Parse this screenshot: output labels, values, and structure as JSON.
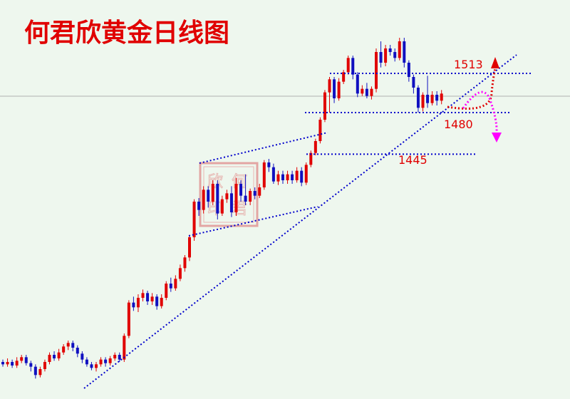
{
  "chart_data": {
    "type": "candlestick",
    "title": "何君欣黄金日线图",
    "colors": {
      "up": "#e00000",
      "down": "#1010c0",
      "trend": "#0000cc",
      "title": "#e00000",
      "arrow_up": "#e00000",
      "arrow_down": "#ff00ff",
      "background": "#eef7ee"
    },
    "levels": [
      {
        "label": "1513",
        "price": 1513,
        "color": "#e00000"
      },
      {
        "label": "1480",
        "price": 1480,
        "color": "#e00000"
      },
      {
        "label": "1445",
        "price": 1445,
        "color": "#e00000"
      }
    ],
    "stamp_text": [
      "何",
      "君",
      "欣",
      "印"
    ],
    "candles": [
      [
        1270,
        1268,
        1272,
        1266
      ],
      [
        1268,
        1270,
        1273,
        1266
      ],
      [
        1270,
        1267,
        1272,
        1265
      ],
      [
        1267,
        1271,
        1274,
        1265
      ],
      [
        1271,
        1274,
        1276,
        1269
      ],
      [
        1274,
        1269,
        1276,
        1267
      ],
      [
        1269,
        1266,
        1271,
        1262
      ],
      [
        1266,
        1259,
        1268,
        1256
      ],
      [
        1259,
        1264,
        1266,
        1257
      ],
      [
        1264,
        1270,
        1272,
        1262
      ],
      [
        1270,
        1276,
        1278,
        1268
      ],
      [
        1276,
        1273,
        1279,
        1271
      ],
      [
        1273,
        1278,
        1281,
        1271
      ],
      [
        1278,
        1283,
        1285,
        1276
      ],
      [
        1283,
        1286,
        1288,
        1280
      ],
      [
        1286,
        1282,
        1288,
        1279
      ],
      [
        1282,
        1277,
        1284,
        1274
      ],
      [
        1277,
        1272,
        1279,
        1269
      ],
      [
        1272,
        1268,
        1274,
        1266
      ],
      [
        1268,
        1265,
        1270,
        1263
      ],
      [
        1265,
        1268,
        1270,
        1262
      ],
      [
        1268,
        1272,
        1274,
        1266
      ],
      [
        1272,
        1269,
        1274,
        1266
      ],
      [
        1269,
        1273,
        1275,
        1267
      ],
      [
        1273,
        1276,
        1278,
        1271
      ],
      [
        1276,
        1272,
        1278,
        1270
      ],
      [
        1272,
        1292,
        1294,
        1270
      ],
      [
        1292,
        1320,
        1322,
        1290
      ],
      [
        1320,
        1316,
        1325,
        1313
      ],
      [
        1316,
        1324,
        1327,
        1312
      ],
      [
        1324,
        1328,
        1331,
        1321
      ],
      [
        1328,
        1321,
        1330,
        1318
      ],
      [
        1321,
        1325,
        1328,
        1318
      ],
      [
        1325,
        1317,
        1327,
        1314
      ],
      [
        1317,
        1324,
        1327,
        1315
      ],
      [
        1324,
        1336,
        1338,
        1322
      ],
      [
        1336,
        1332,
        1341,
        1329
      ],
      [
        1332,
        1340,
        1343,
        1330
      ],
      [
        1340,
        1349,
        1352,
        1338
      ],
      [
        1349,
        1358,
        1360,
        1346
      ],
      [
        1358,
        1375,
        1377,
        1355
      ],
      [
        1375,
        1405,
        1407,
        1372
      ],
      [
        1405,
        1398,
        1408,
        1393
      ],
      [
        1398,
        1415,
        1418,
        1395
      ],
      [
        1415,
        1405,
        1418,
        1400
      ],
      [
        1405,
        1420,
        1423,
        1402
      ],
      [
        1420,
        1395,
        1423,
        1390
      ],
      [
        1395,
        1407,
        1410,
        1393
      ],
      [
        1407,
        1412,
        1415,
        1404
      ],
      [
        1412,
        1396,
        1418,
        1392
      ],
      [
        1396,
        1420,
        1425,
        1393
      ],
      [
        1420,
        1410,
        1423,
        1405
      ],
      [
        1410,
        1405,
        1428,
        1402
      ],
      [
        1405,
        1414,
        1416,
        1402
      ],
      [
        1414,
        1410,
        1417,
        1407
      ],
      [
        1410,
        1417,
        1420,
        1408
      ],
      [
        1417,
        1438,
        1440,
        1415
      ],
      [
        1438,
        1434,
        1441,
        1430
      ],
      [
        1434,
        1422,
        1437,
        1420
      ],
      [
        1422,
        1428,
        1431,
        1419
      ],
      [
        1428,
        1423,
        1431,
        1420
      ],
      [
        1423,
        1428,
        1431,
        1420
      ],
      [
        1428,
        1423,
        1431,
        1420
      ],
      [
        1423,
        1431,
        1434,
        1421
      ],
      [
        1431,
        1421,
        1434,
        1418
      ],
      [
        1421,
        1436,
        1438,
        1419
      ],
      [
        1436,
        1446,
        1448,
        1434
      ],
      [
        1446,
        1456,
        1458,
        1444
      ],
      [
        1456,
        1474,
        1476,
        1454
      ],
      [
        1474,
        1497,
        1499,
        1472
      ],
      [
        1497,
        1508,
        1510,
        1480
      ],
      [
        1508,
        1492,
        1510,
        1488
      ],
      [
        1492,
        1506,
        1509,
        1490
      ],
      [
        1506,
        1514,
        1516,
        1504
      ],
      [
        1514,
        1526,
        1528,
        1512
      ],
      [
        1526,
        1512,
        1528,
        1508
      ],
      [
        1512,
        1496,
        1514,
        1493
      ],
      [
        1496,
        1500,
        1503,
        1494
      ],
      [
        1500,
        1494,
        1505,
        1492
      ],
      [
        1494,
        1500,
        1502,
        1491
      ],
      [
        1500,
        1531,
        1534,
        1497
      ],
      [
        1531,
        1522,
        1540,
        1518
      ],
      [
        1522,
        1534,
        1537,
        1519
      ],
      [
        1534,
        1531,
        1537,
        1528
      ],
      [
        1531,
        1526,
        1534,
        1523
      ],
      [
        1526,
        1540,
        1543,
        1524
      ],
      [
        1540,
        1522,
        1543,
        1518
      ],
      [
        1522,
        1510,
        1524,
        1506
      ],
      [
        1510,
        1501,
        1512,
        1496
      ],
      [
        1501,
        1484,
        1503,
        1480
      ],
      [
        1484,
        1495,
        1497,
        1481
      ],
      [
        1495,
        1488,
        1511,
        1484
      ],
      [
        1488,
        1495,
        1498,
        1486
      ],
      [
        1495,
        1490,
        1498,
        1486
      ],
      [
        1490,
        1496,
        1499,
        1487
      ]
    ]
  }
}
